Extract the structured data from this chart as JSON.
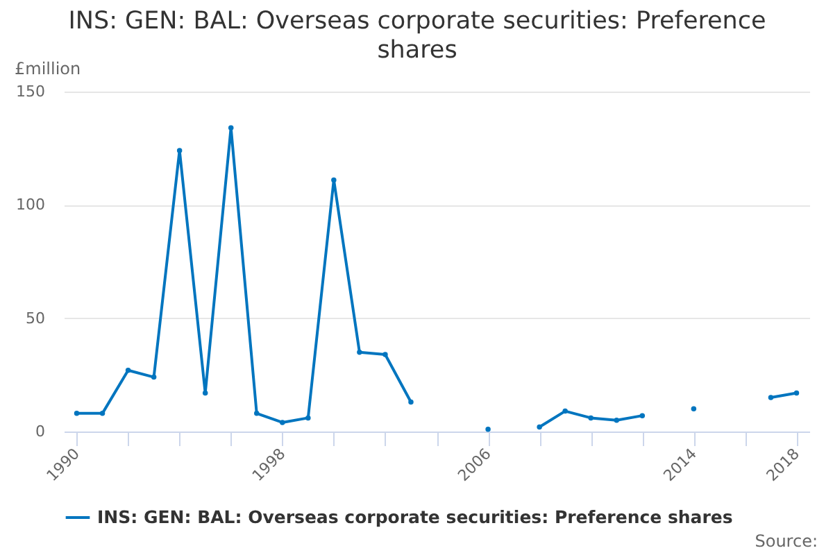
{
  "chart_data": {
    "type": "line",
    "title": "INS: GEN: BAL: Overseas corporate securities: Preference shares",
    "ylabel": "£million",
    "x": [
      1990,
      1991,
      1992,
      1993,
      1994,
      1995,
      1996,
      1997,
      1998,
      1999,
      2000,
      2001,
      2002,
      2003,
      2004,
      2005,
      2006,
      2007,
      2008,
      2009,
      2010,
      2011,
      2012,
      2013,
      2014,
      2015,
      2016,
      2017,
      2018
    ],
    "series": [
      {
        "name": "INS: GEN: BAL: Overseas corporate securities: Preference shares",
        "color": "#0075bf",
        "values": [
          8,
          8,
          27,
          24,
          124,
          17,
          134,
          8,
          4,
          6,
          111,
          35,
          34,
          13,
          null,
          null,
          1,
          null,
          2,
          9,
          6,
          5,
          7,
          null,
          10,
          null,
          null,
          15,
          17
        ]
      }
    ],
    "xlim": [
      1989.5,
      2018.5
    ],
    "xticks": [
      1990,
      {
        "value": 1992,
        "label": null
      },
      {
        "value": 1994,
        "label": null
      },
      {
        "value": 1996,
        "label": null
      },
      1998,
      {
        "value": 2000,
        "label": null
      },
      {
        "value": 2002,
        "label": null
      },
      {
        "value": 2004,
        "label": null
      },
      2006,
      {
        "value": 2008,
        "label": null
      },
      {
        "value": 2010,
        "label": null
      },
      {
        "value": 2012,
        "label": null
      },
      2014,
      {
        "value": 2016,
        "label": null
      },
      2018
    ],
    "ylim": [
      0,
      150
    ],
    "yticks": [
      0,
      50,
      100,
      150
    ],
    "grid": "y",
    "legend": "bottom",
    "marker": "circle",
    "line_style": "solid",
    "annotations": [
      "Source:"
    ]
  }
}
